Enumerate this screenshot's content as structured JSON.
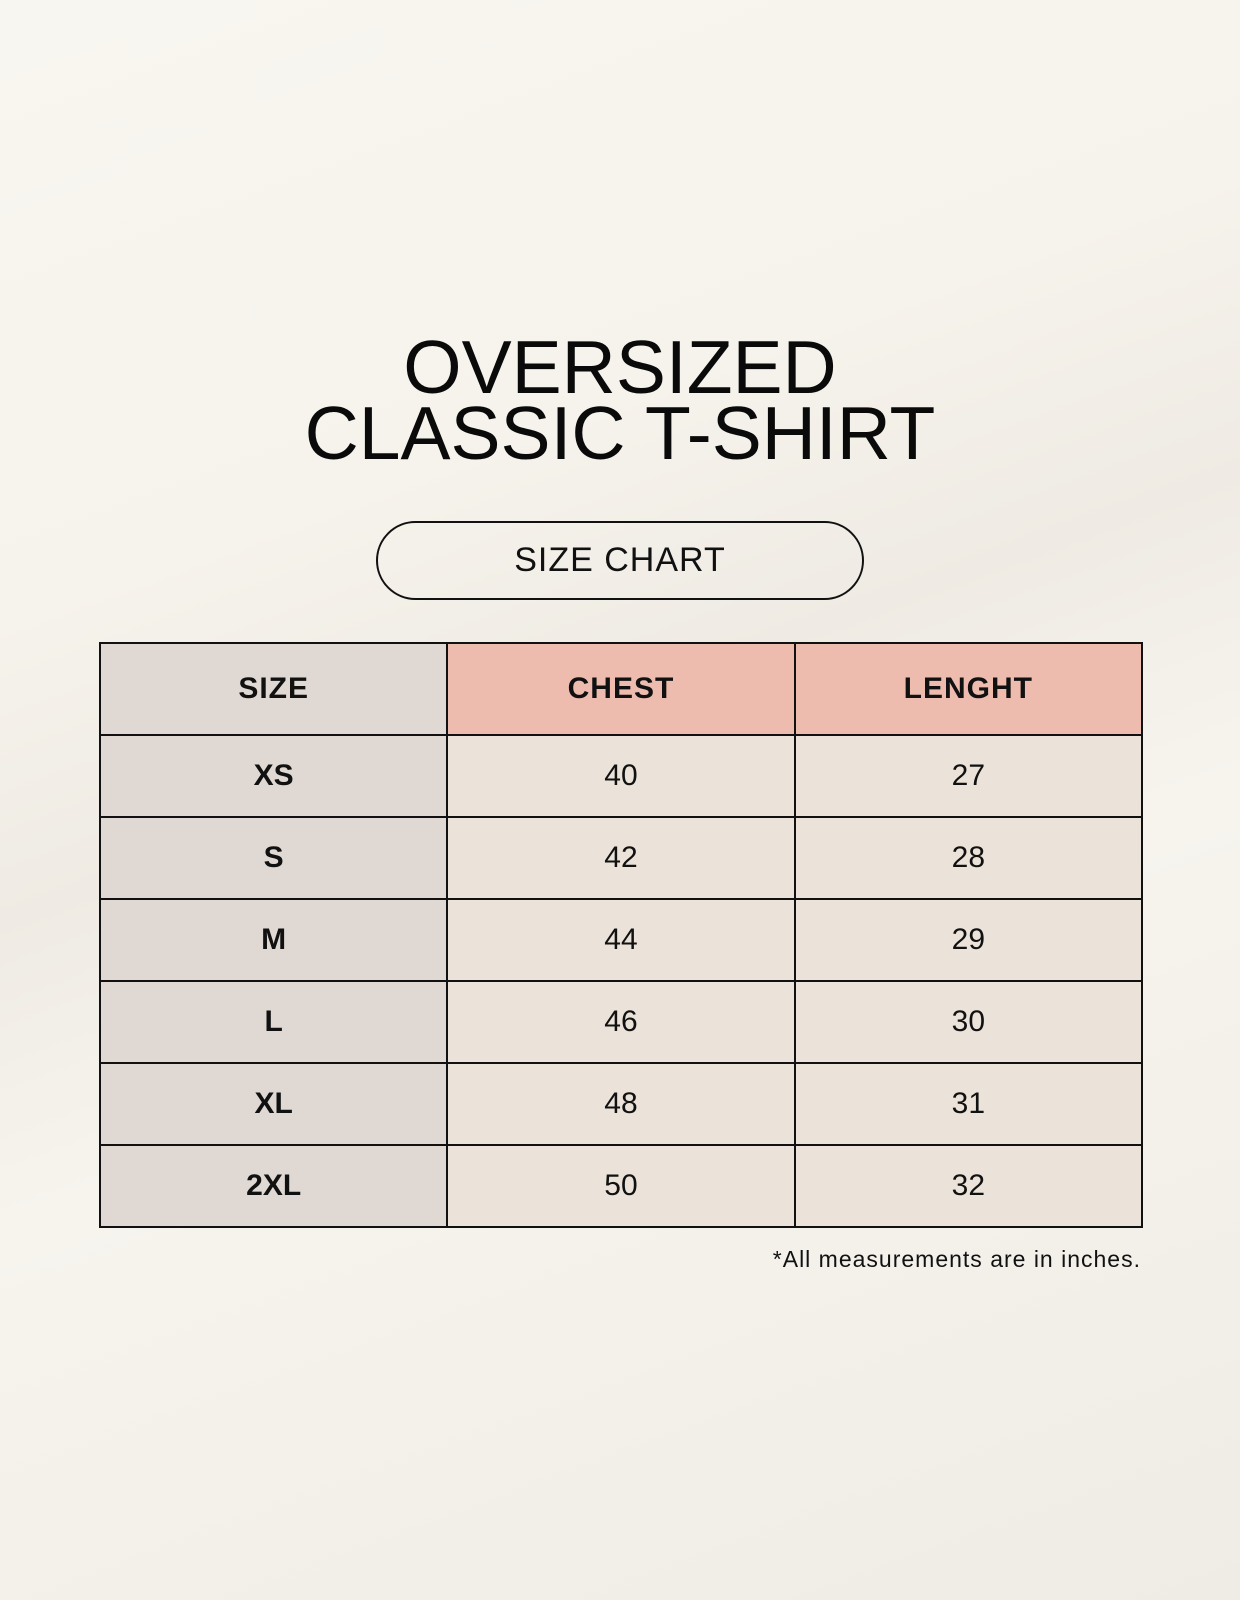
{
  "title_line1": "OVERSIZED",
  "title_line2": "CLASSIC T-SHIRT",
  "badge": "SIZE CHART",
  "table": {
    "headers": [
      "SIZE",
      "CHEST",
      "LENGHT"
    ],
    "rows": [
      [
        "XS",
        "40",
        "27"
      ],
      [
        "S",
        "42",
        "28"
      ],
      [
        "M",
        "44",
        "29"
      ],
      [
        "L",
        "46",
        "30"
      ],
      [
        "XL",
        "48",
        "31"
      ],
      [
        "2XL",
        "50",
        "32"
      ]
    ]
  },
  "footnote": "*All measurements are in inches.",
  "colors": {
    "size_column": "#e0d9d3",
    "header_accent": "#edbcae",
    "cell": "#ebe3d9"
  }
}
